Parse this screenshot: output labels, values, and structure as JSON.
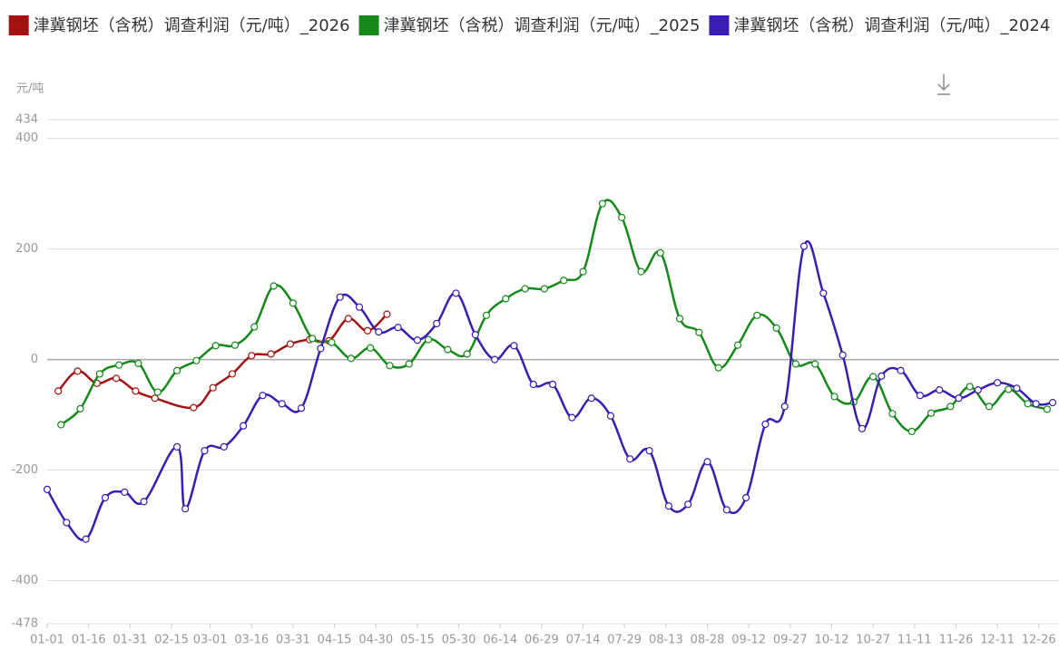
{
  "chart_data": {
    "type": "line",
    "y_unit": "元/吨",
    "x_is_date": true,
    "xlim": [
      "01-01",
      "12-31"
    ],
    "xticks": [
      "01-01",
      "01-16",
      "01-31",
      "02-15",
      "03-01",
      "03-16",
      "03-31",
      "04-15",
      "04-30",
      "05-15",
      "05-30",
      "06-14",
      "06-29",
      "07-14",
      "07-29",
      "08-13",
      "08-28",
      "09-12",
      "09-27",
      "10-12",
      "10-27",
      "11-11",
      "11-26",
      "12-11",
      "12-26"
    ],
    "ylim": [
      -478,
      434
    ],
    "yticks": [
      -478,
      -400,
      -200,
      0,
      200,
      400,
      434
    ],
    "grid": true,
    "legend": "top",
    "series": [
      {
        "name": "津冀钢坯（含税）调查利润（元/吨）_2026",
        "color": "#a51212",
        "x": [
          "01-05",
          "01-12",
          "01-19",
          "01-26",
          "02-02",
          "02-09",
          "02-23",
          "03-02",
          "03-09",
          "03-16",
          "03-23",
          "03-30",
          "04-06",
          "04-13",
          "04-20",
          "04-27",
          "05-04"
        ],
        "values": [
          -57,
          -21,
          -43,
          -34,
          -57,
          -70,
          -87,
          -51,
          -26,
          7,
          10,
          28,
          36,
          34,
          74,
          52,
          82
        ]
      },
      {
        "name": "津冀钢坯（含税）调查利润（元/吨）_2025",
        "color": "#15891a",
        "x": [
          "01-06",
          "01-13",
          "01-20",
          "01-27",
          "02-03",
          "02-10",
          "02-17",
          "02-24",
          "03-03",
          "03-10",
          "03-17",
          "03-24",
          "03-31",
          "04-07",
          "04-14",
          "04-21",
          "04-28",
          "05-05",
          "05-12",
          "05-19",
          "05-26",
          "06-02",
          "06-09",
          "06-16",
          "06-23",
          "06-30",
          "07-07",
          "07-14",
          "07-21",
          "07-28",
          "08-04",
          "08-11",
          "08-18",
          "08-25",
          "09-01",
          "09-08",
          "09-15",
          "09-22",
          "09-29",
          "10-06",
          "10-13",
          "10-20",
          "10-27",
          "11-03",
          "11-10",
          "11-17",
          "11-24",
          "12-01",
          "12-08",
          "12-15",
          "12-22",
          "12-29"
        ],
        "values": [
          -118,
          -89,
          -26,
          -10,
          -7,
          -59,
          -20,
          -2,
          25,
          26,
          59,
          133,
          102,
          38,
          31,
          2,
          21,
          -11,
          -8,
          36,
          18,
          10,
          80,
          110,
          128,
          128,
          143,
          159,
          282,
          257,
          159,
          193,
          74,
          49,
          -15,
          26,
          80,
          57,
          -8,
          -8,
          -67,
          -77,
          -31,
          -98,
          -130,
          -97,
          -85,
          -49,
          -85,
          -54,
          -80,
          -90
        ]
      },
      {
        "name": "津冀钢坯（含税）调查利润（元/吨）_2024",
        "color": "#3b1cb4",
        "x": [
          "01-01",
          "01-08",
          "01-15",
          "01-22",
          "01-29",
          "02-05",
          "02-17",
          "02-20",
          "02-27",
          "03-06",
          "03-13",
          "03-20",
          "03-27",
          "04-03",
          "04-10",
          "04-17",
          "04-24",
          "05-01",
          "05-08",
          "05-15",
          "05-22",
          "05-29",
          "06-05",
          "06-12",
          "06-19",
          "06-26",
          "07-03",
          "07-10",
          "07-17",
          "07-24",
          "07-31",
          "08-07",
          "08-14",
          "08-21",
          "08-28",
          "09-04",
          "09-11",
          "09-18",
          "09-25",
          "10-02",
          "10-09",
          "10-16",
          "10-23",
          "10-30",
          "11-06",
          "11-13",
          "11-20",
          "11-27",
          "12-04",
          "12-11",
          "12-18",
          "12-25",
          "12-31"
        ],
        "values": [
          -235,
          -295,
          -325,
          -250,
          -240,
          -257,
          -158,
          -270,
          -165,
          -158,
          -120,
          -65,
          -80,
          -88,
          20,
          113,
          95,
          50,
          58,
          35,
          65,
          120,
          45,
          0,
          25,
          -45,
          -45,
          -105,
          -70,
          -102,
          -180,
          -165,
          -265,
          -262,
          -185,
          -272,
          -250,
          -117,
          -85,
          205,
          120,
          8,
          -125,
          -30,
          -20,
          -65,
          -55,
          -70,
          -55,
          -42,
          -52,
          -80,
          -78
        ]
      }
    ]
  }
}
